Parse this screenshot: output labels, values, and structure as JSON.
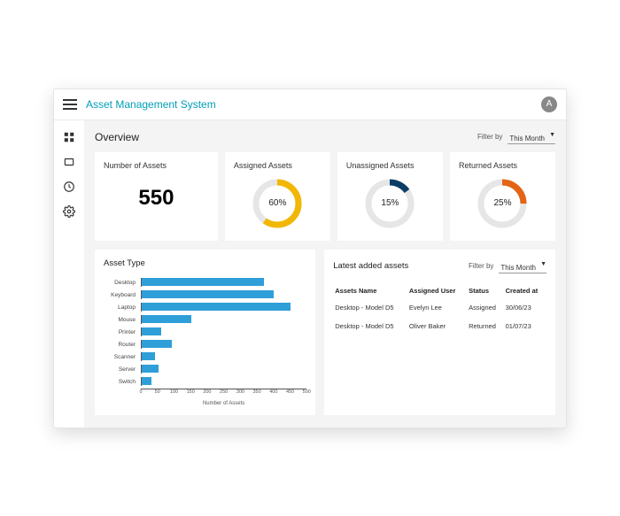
{
  "colors": {
    "brand": "#009fb7",
    "card_bg": "#ffffff",
    "main_bg": "#f4f4f4",
    "text": "#222222",
    "muted": "#555555",
    "donut_track": "#e6e6e6"
  },
  "header": {
    "title": "Asset Management System",
    "avatar_letter": "A"
  },
  "overview": {
    "title": "Overview",
    "filter_label": "Filter by",
    "filter_value": "This Month"
  },
  "kpis": {
    "count": {
      "title": "Number of Assets",
      "value": "550"
    },
    "donuts": [
      {
        "title": "Assigned Assets",
        "percent": 60,
        "label": "60%",
        "color": "#f2b705"
      },
      {
        "title": "Unassigned Assets",
        "percent": 15,
        "label": "15%",
        "color": "#0b3d66"
      },
      {
        "title": "Returned Assets",
        "percent": 25,
        "label": "25%",
        "color": "#e36414"
      }
    ]
  },
  "asset_type_chart": {
    "title": "Asset Type",
    "type": "bar",
    "bar_color": "#2e9fd8",
    "x_max": 500,
    "x_tick_step": 50,
    "x_label": "Number of Assets",
    "categories": [
      "Desktop",
      "Keyboard",
      "Laptop",
      "Mouse",
      "Printer",
      "Router",
      "Scanner",
      "Server",
      "Switch"
    ],
    "values": [
      370,
      400,
      450,
      150,
      60,
      90,
      40,
      50,
      30
    ]
  },
  "latest": {
    "title": "Latest added assets",
    "filter_label": "Filter by",
    "filter_value": "This Month",
    "columns": [
      "Assets Name",
      "Assigned User",
      "Status",
      "Created at"
    ],
    "rows": [
      [
        "Desktop - Model D5",
        "Evelyn Lee",
        "Assigned",
        "30/06/23"
      ],
      [
        "Desktop - Model D5",
        "Oliver Baker",
        "Returned",
        "01/07/23"
      ]
    ]
  }
}
